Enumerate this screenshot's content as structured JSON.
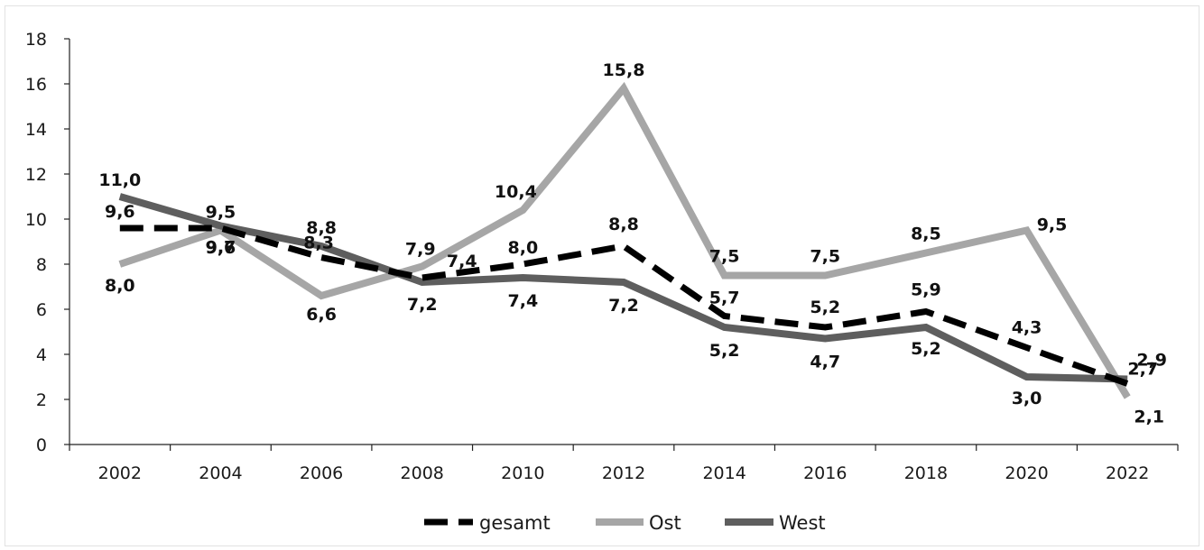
{
  "chart_data": {
    "type": "line",
    "categories": [
      "2002",
      "2004",
      "2006",
      "2008",
      "2010",
      "2012",
      "2014",
      "2016",
      "2018",
      "2020",
      "2022"
    ],
    "series": [
      {
        "name": "gesamt",
        "color": "#000000",
        "style": "dashed",
        "values": [
          9.6,
          9.6,
          8.3,
          7.4,
          8.0,
          8.8,
          5.7,
          5.2,
          5.9,
          4.3,
          2.7
        ],
        "labels": [
          "9,6",
          "9,6",
          "8,3",
          "7,4",
          "8,0",
          "8,8",
          "5,7",
          "5,2",
          "5,9",
          "4,3",
          "2,7"
        ]
      },
      {
        "name": "Ost",
        "color": "#a6a6a6",
        "style": "solid",
        "values": [
          8.0,
          9.5,
          6.6,
          7.9,
          10.4,
          15.8,
          7.5,
          7.5,
          8.5,
          9.5,
          2.1
        ],
        "labels": [
          "8,0",
          "9,5",
          "6,6",
          "7,9",
          "10,4",
          "15,8",
          "7,5",
          "7,5",
          "8,5",
          "9,5",
          "2,1"
        ]
      },
      {
        "name": "West",
        "color": "#5e5e5e",
        "style": "solid",
        "values": [
          11.0,
          9.7,
          8.8,
          7.2,
          7.4,
          7.2,
          5.2,
          4.7,
          5.2,
          3.0,
          2.9
        ],
        "labels": [
          "11,0",
          "9,7",
          "8,8",
          "7,2",
          "7,4",
          "7,2",
          "5,2",
          "4,7",
          "5,2",
          "3,0",
          "2,9"
        ]
      }
    ],
    "ylim": [
      0,
      18
    ],
    "yticks": [
      "0",
      "2",
      "4",
      "6",
      "8",
      "10",
      "12",
      "14",
      "16",
      "18"
    ],
    "title": "",
    "xlabel": "",
    "ylabel": "",
    "grid": false,
    "legend_position": "bottom"
  }
}
